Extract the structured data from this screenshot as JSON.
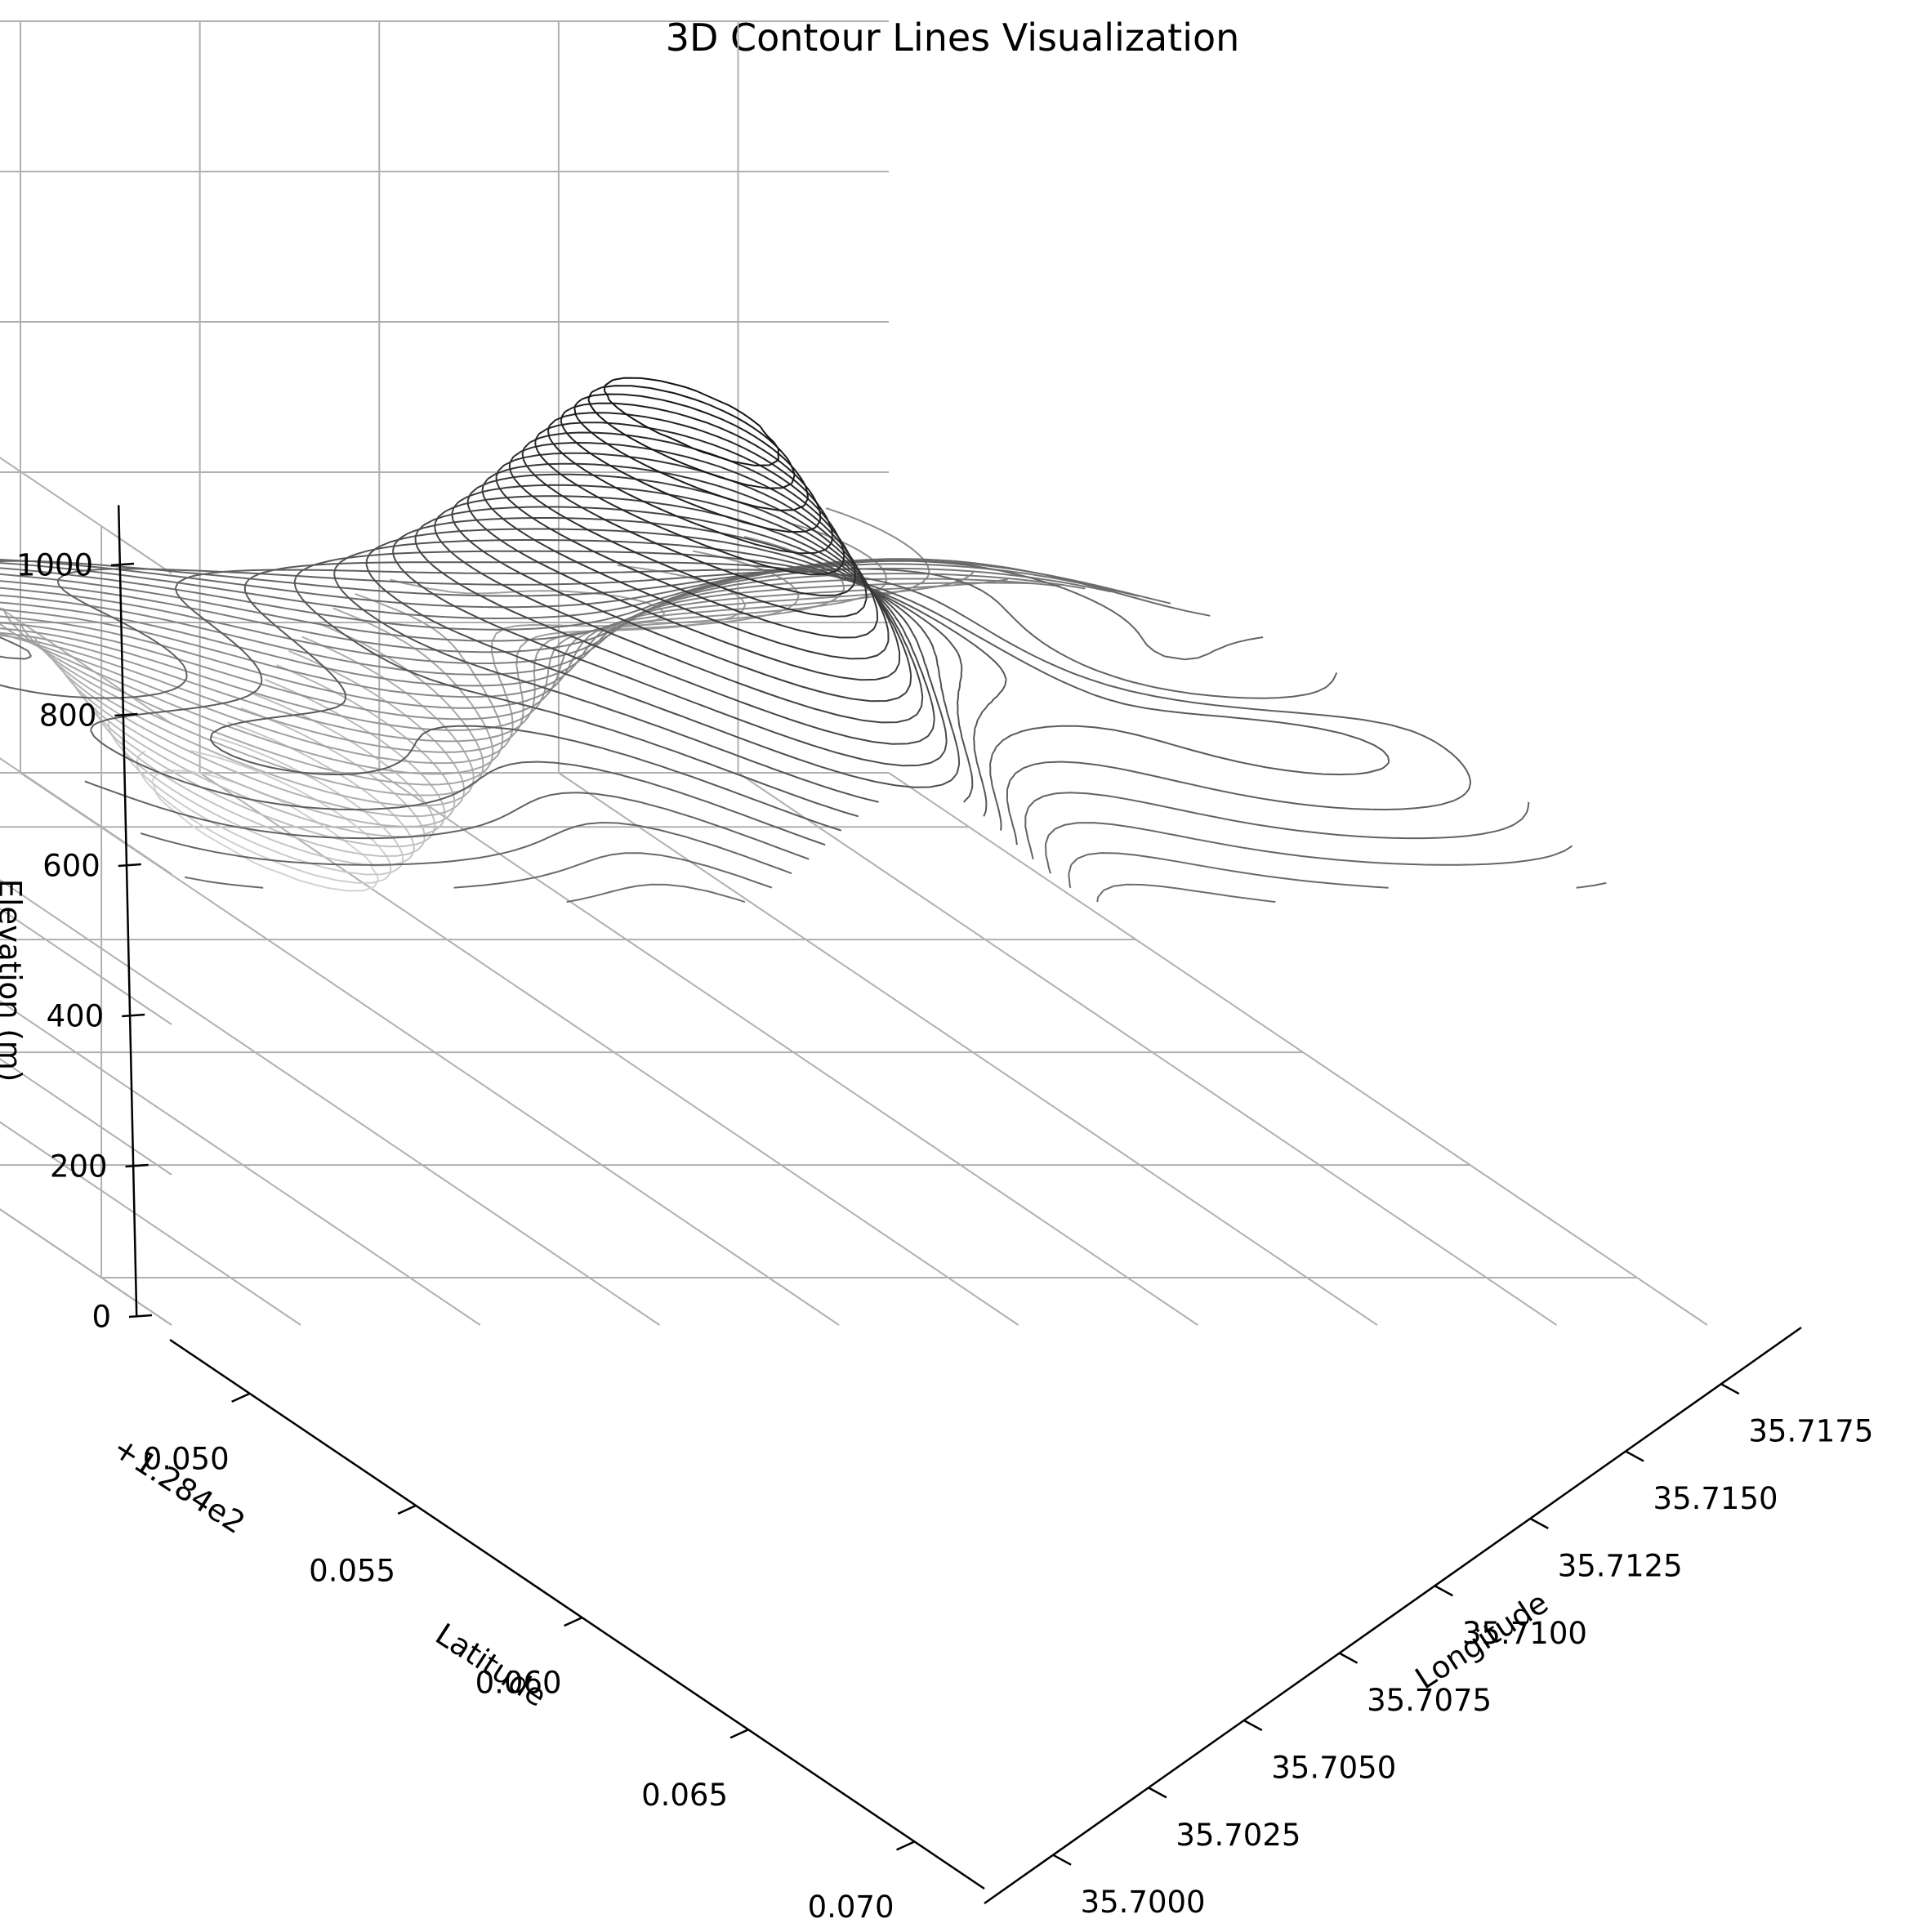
{
  "chart_data": {
    "type": "contour3d",
    "title": "3D Contour Lines Visualization",
    "xlabel": "Longitude",
    "ylabel": "Latitude",
    "zlabel": "Elevation (m)",
    "y_offset_label": "+1.284e2",
    "x_ticks": [
      "35.7000",
      "35.7025",
      "35.7050",
      "35.7075",
      "35.7100",
      "35.7125",
      "35.7150",
      "35.7175"
    ],
    "x_tick_values": [
      35.7,
      35.7025,
      35.705,
      35.7075,
      35.71,
      35.7125,
      35.715,
      35.7175
    ],
    "y_ticks": [
      "0.050",
      "0.055",
      "0.060",
      "0.065",
      "0.070"
    ],
    "y_tick_values": [
      128.45,
      128.455,
      128.46,
      128.465,
      128.47
    ],
    "z_ticks": [
      "0",
      "200",
      "400",
      "600",
      "800",
      "1000"
    ],
    "z_tick_values": [
      0,
      200,
      400,
      600,
      800,
      1000
    ],
    "xlim": [
      35.6982,
      35.7196
    ],
    "ylim": [
      128.4476,
      128.4721
    ],
    "zlim": [
      0,
      1000
    ],
    "colormap": "greys",
    "contour_levels": 50,
    "line_color": "#000000",
    "grid": true
  }
}
